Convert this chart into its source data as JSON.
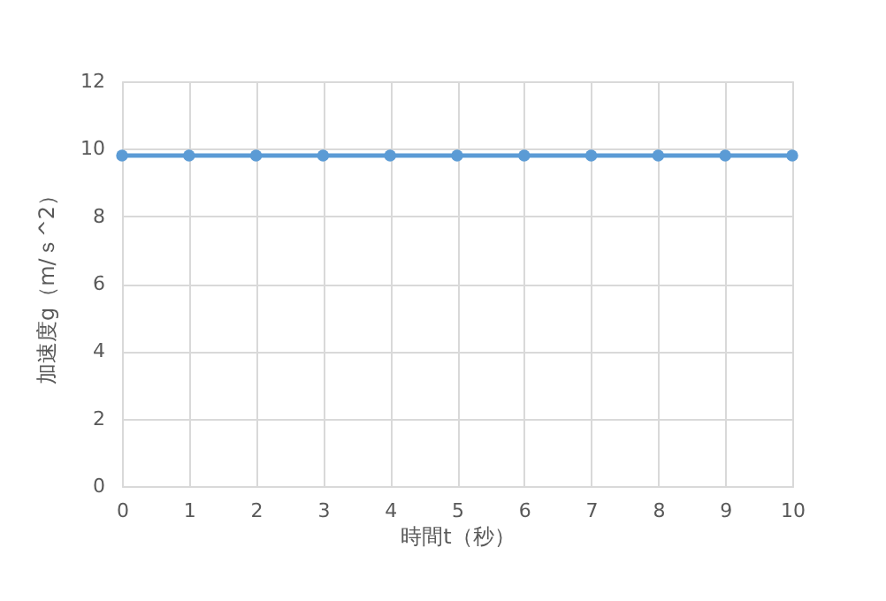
{
  "chart_data": {
    "type": "line",
    "xlabel": "時間t（秒）",
    "ylabel": "加速度g（m/ｓ^2）",
    "x": [
      0,
      1,
      2,
      3,
      4,
      5,
      6,
      7,
      8,
      9,
      10
    ],
    "series": [
      {
        "color": "#5b9bd5",
        "values": [
          9.8,
          9.8,
          9.8,
          9.8,
          9.8,
          9.8,
          9.8,
          9.8,
          9.8,
          9.8,
          9.8
        ]
      }
    ],
    "xlim": [
      0,
      10
    ],
    "xticks": [
      0,
      1,
      2,
      3,
      4,
      5,
      6,
      7,
      8,
      9,
      10
    ],
    "ylim": [
      0,
      12
    ],
    "yticks": [
      0,
      2,
      4,
      6,
      8,
      10,
      12
    ],
    "grid": true,
    "marker": "circle"
  }
}
